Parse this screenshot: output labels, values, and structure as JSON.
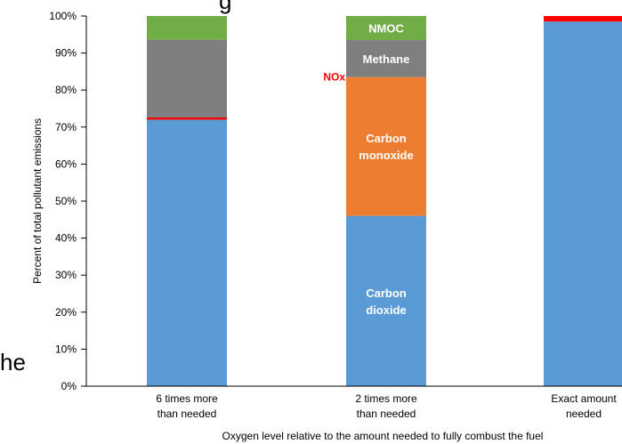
{
  "fragments": {
    "top_text": "g",
    "left_text": "he"
  },
  "chart_data": {
    "type": "bar",
    "stacked": true,
    "ylabel": "Percent of total pollutant emissions",
    "xlabel": "Oxygen level relative to the amount needed to fully combust the fuel",
    "ylim": [
      0,
      100
    ],
    "yticks": [
      "0%",
      "10%",
      "20%",
      "30%",
      "40%",
      "50%",
      "60%",
      "70%",
      "80%",
      "90%",
      "100%"
    ],
    "categories": [
      [
        "6 times more",
        "than needed"
      ],
      [
        "2 times more",
        "than needed"
      ],
      [
        "Exact amount",
        "needed"
      ]
    ],
    "series": [
      {
        "key": "carbon_dioxide",
        "label": [
          "Carbon",
          "dioxide"
        ],
        "color": "#5b9bd5",
        "values": [
          72,
          46,
          98.5
        ]
      },
      {
        "key": "carbon_monoxide",
        "label": [
          "Carbon",
          "monoxide"
        ],
        "color": "#ed7d31",
        "values": [
          0,
          37.5,
          0
        ]
      },
      {
        "key": "nox",
        "label": [
          "NOx"
        ],
        "color": "#ff0000",
        "values": [
          0.6,
          0,
          1.5
        ]
      },
      {
        "key": "methane",
        "label": [
          "Methane"
        ],
        "color": "#7f7f7f",
        "values": [
          21,
          10,
          0
        ]
      },
      {
        "key": "nmoc",
        "label": [
          "NMOC"
        ],
        "color": "#70ad47",
        "values": [
          6.4,
          6.5,
          0
        ]
      }
    ],
    "labeled_bar": 1,
    "grid": false
  }
}
